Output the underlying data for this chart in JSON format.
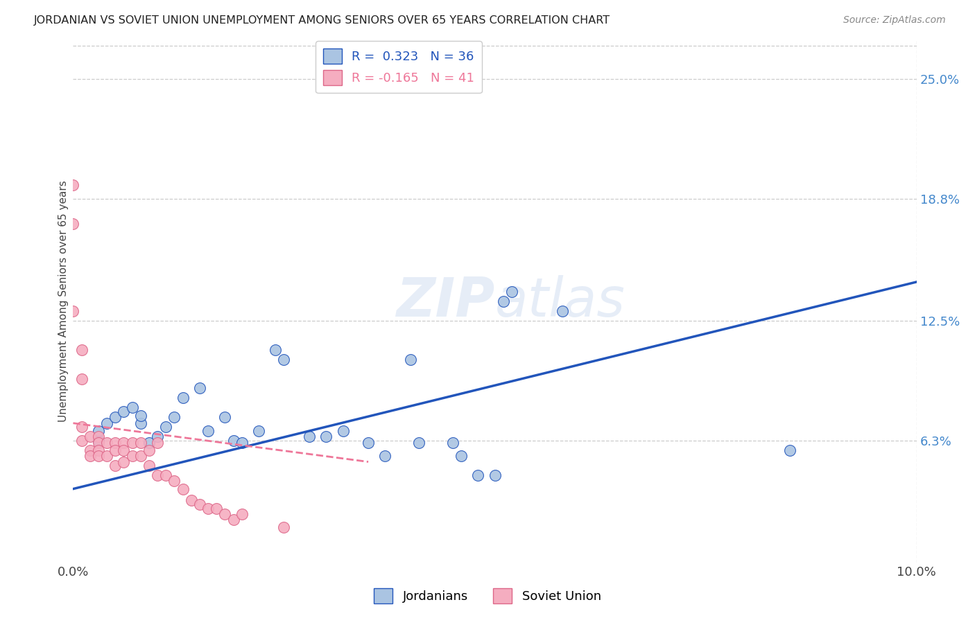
{
  "title": "JORDANIAN VS SOVIET UNION UNEMPLOYMENT AMONG SENIORS OVER 65 YEARS CORRELATION CHART",
  "source": "Source: ZipAtlas.com",
  "xlabel": "",
  "ylabel": "Unemployment Among Seniors over 65 years",
  "xlim": [
    0.0,
    0.1
  ],
  "ylim": [
    0.0,
    0.27
  ],
  "right_yticks": [
    0.063,
    0.125,
    0.188,
    0.25
  ],
  "right_yticklabels": [
    "6.3%",
    "12.5%",
    "18.8%",
    "25.0%"
  ],
  "jordanians_R": 0.323,
  "jordanians_N": 36,
  "soviet_R": -0.165,
  "soviet_N": 41,
  "jordanians_color": "#aac4e2",
  "soviet_color": "#f5adc0",
  "trend_jordan_color": "#2255bb",
  "trend_soviet_color": "#ee7799",
  "background_color": "#ffffff",
  "jordanians_x": [
    0.003,
    0.003,
    0.004,
    0.005,
    0.006,
    0.007,
    0.008,
    0.008,
    0.009,
    0.01,
    0.011,
    0.012,
    0.013,
    0.015,
    0.016,
    0.018,
    0.019,
    0.02,
    0.022,
    0.024,
    0.025,
    0.028,
    0.03,
    0.032,
    0.035,
    0.037,
    0.04,
    0.041,
    0.045,
    0.046,
    0.048,
    0.05,
    0.051,
    0.052,
    0.085,
    0.058
  ],
  "jordanians_y": [
    0.063,
    0.068,
    0.072,
    0.075,
    0.078,
    0.08,
    0.072,
    0.076,
    0.062,
    0.065,
    0.07,
    0.075,
    0.085,
    0.09,
    0.068,
    0.075,
    0.063,
    0.062,
    0.068,
    0.11,
    0.105,
    0.065,
    0.065,
    0.068,
    0.062,
    0.055,
    0.105,
    0.062,
    0.062,
    0.055,
    0.045,
    0.045,
    0.135,
    0.14,
    0.058,
    0.13
  ],
  "soviet_x": [
    0.0,
    0.0,
    0.0,
    0.001,
    0.001,
    0.001,
    0.001,
    0.002,
    0.002,
    0.002,
    0.003,
    0.003,
    0.003,
    0.003,
    0.004,
    0.004,
    0.005,
    0.005,
    0.005,
    0.006,
    0.006,
    0.006,
    0.007,
    0.007,
    0.008,
    0.008,
    0.009,
    0.009,
    0.01,
    0.01,
    0.011,
    0.012,
    0.013,
    0.014,
    0.015,
    0.016,
    0.017,
    0.018,
    0.019,
    0.02,
    0.025
  ],
  "soviet_y": [
    0.195,
    0.175,
    0.13,
    0.11,
    0.095,
    0.07,
    0.063,
    0.065,
    0.058,
    0.055,
    0.065,
    0.062,
    0.058,
    0.055,
    0.062,
    0.055,
    0.062,
    0.058,
    0.05,
    0.062,
    0.058,
    0.052,
    0.062,
    0.055,
    0.062,
    0.055,
    0.058,
    0.05,
    0.062,
    0.045,
    0.045,
    0.042,
    0.038,
    0.032,
    0.03,
    0.028,
    0.028,
    0.025,
    0.022,
    0.025,
    0.018
  ],
  "watermark": "ZIPatlas",
  "legend_jordan_label": "Jordanians",
  "legend_soviet_label": "Soviet Union",
  "jordan_trend_x0": 0.0,
  "jordan_trend_y0": 0.038,
  "jordan_trend_x1": 0.1,
  "jordan_trend_y1": 0.145,
  "soviet_trend_x0": 0.0,
  "soviet_trend_y0": 0.072,
  "soviet_trend_x1": 0.035,
  "soviet_trend_y1": 0.052
}
